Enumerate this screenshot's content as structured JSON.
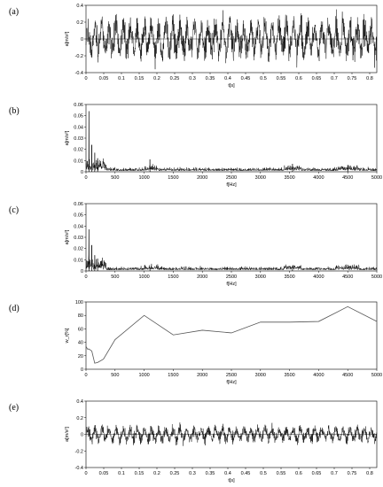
{
  "chart_data": [
    {
      "panel": "(a)",
      "type": "line",
      "xlabel": "t[s]",
      "ylabel": "a[m/s²]",
      "xlim": [
        0,
        0.82
      ],
      "ylim": [
        -0.4,
        0.4
      ],
      "xticks": [
        "0",
        "0.05",
        "0.1",
        "0.15",
        "0.2",
        "0.25",
        "0.3",
        "0.35",
        "0.4",
        "0.45",
        "0.5",
        "0.55",
        "0.6",
        "0.65",
        "0.7",
        "0.75",
        "0.8"
      ],
      "yticks": [
        "-0.4",
        "-0.2",
        "0",
        "0.2",
        "0.4"
      ],
      "signal": {
        "kind": "dense_oscillation",
        "amplitude_approx": 0.3,
        "peak_approx": 0.36,
        "trough_approx": -0.36
      }
    },
    {
      "panel": "(b)",
      "type": "line",
      "xlabel": "f[Hz]",
      "ylabel": "a[m/s²]",
      "xlim": [
        0,
        5000
      ],
      "ylim": [
        0,
        0.06
      ],
      "xticks": [
        "0",
        "500",
        "1000",
        "1500",
        "2000",
        "2500",
        "3000",
        "3500",
        "4000",
        "4500",
        "5000"
      ],
      "yticks": [
        "0",
        "0.01",
        "0.02",
        "0.03",
        "0.04",
        "0.05",
        "0.06"
      ],
      "peaks": [
        {
          "x": 50,
          "y": 0.054
        },
        {
          "x": 100,
          "y": 0.024
        },
        {
          "x": 150,
          "y": 0.017
        },
        {
          "x": 200,
          "y": 0.012
        },
        {
          "x": 1100,
          "y": 0.011
        },
        {
          "x": 3550,
          "y": 0.007
        },
        {
          "x": 4500,
          "y": 0.006
        }
      ]
    },
    {
      "panel": "(c)",
      "type": "line",
      "xlabel": "f[Hz]",
      "ylabel": "a[m/s²]",
      "xlim": [
        0,
        5000
      ],
      "ylim": [
        0,
        0.06
      ],
      "xticks": [
        "0",
        "500",
        "1000",
        "1500",
        "2000",
        "2500",
        "3000",
        "3500",
        "4000",
        "4500",
        "5000"
      ],
      "yticks": [
        "0",
        "0.01",
        "0.02",
        "0.03",
        "0.04",
        "0.05",
        "0.06"
      ],
      "peaks": [
        {
          "x": 50,
          "y": 0.037
        },
        {
          "x": 100,
          "y": 0.023
        },
        {
          "x": 150,
          "y": 0.014
        },
        {
          "x": 200,
          "y": 0.011
        },
        {
          "x": 1100,
          "y": 0.003
        },
        {
          "x": 3550,
          "y": 0.003
        }
      ]
    },
    {
      "panel": "(d)",
      "type": "line",
      "xlabel": "f[Hz]",
      "ylabel": "w_r[%]",
      "xlim": [
        0,
        5000
      ],
      "ylim": [
        0,
        100
      ],
      "xticks": [
        "0",
        "500",
        "1000",
        "1500",
        "2000",
        "2500",
        "3000",
        "3500",
        "4000",
        "4500",
        "5000"
      ],
      "yticks": [
        "0",
        "20",
        "40",
        "60",
        "80",
        "100"
      ],
      "series": [
        {
          "x": [
            0,
            25,
            50,
            100,
            150,
            200,
            300,
            500,
            1000,
            1500,
            2000,
            2500,
            3000,
            3500,
            4000,
            4500,
            5000
          ],
          "y": [
            34,
            30,
            30,
            27,
            9,
            10,
            15,
            44,
            80,
            51,
            58,
            54,
            70,
            70,
            71,
            93,
            71
          ]
        }
      ]
    },
    {
      "panel": "(e)",
      "type": "line",
      "xlabel": "t[s]",
      "ylabel": "a[m/s²]",
      "xlim": [
        0,
        0.82
      ],
      "ylim": [
        -0.4,
        0.4
      ],
      "xticks": [
        "0",
        "0.05",
        "0.1",
        "0.15",
        "0.2",
        "0.25",
        "0.3",
        "0.35",
        "0.4",
        "0.45",
        "0.5",
        "0.55",
        "0.6",
        "0.65",
        "0.7",
        "0.75",
        "0.8"
      ],
      "yticks": [
        "-0.4",
        "-0.2",
        "0",
        "0.2",
        "0.4"
      ],
      "signal": {
        "kind": "dense_oscillation",
        "amplitude_approx": 0.12,
        "peak_approx": 0.16,
        "trough_approx": -0.16
      }
    }
  ]
}
